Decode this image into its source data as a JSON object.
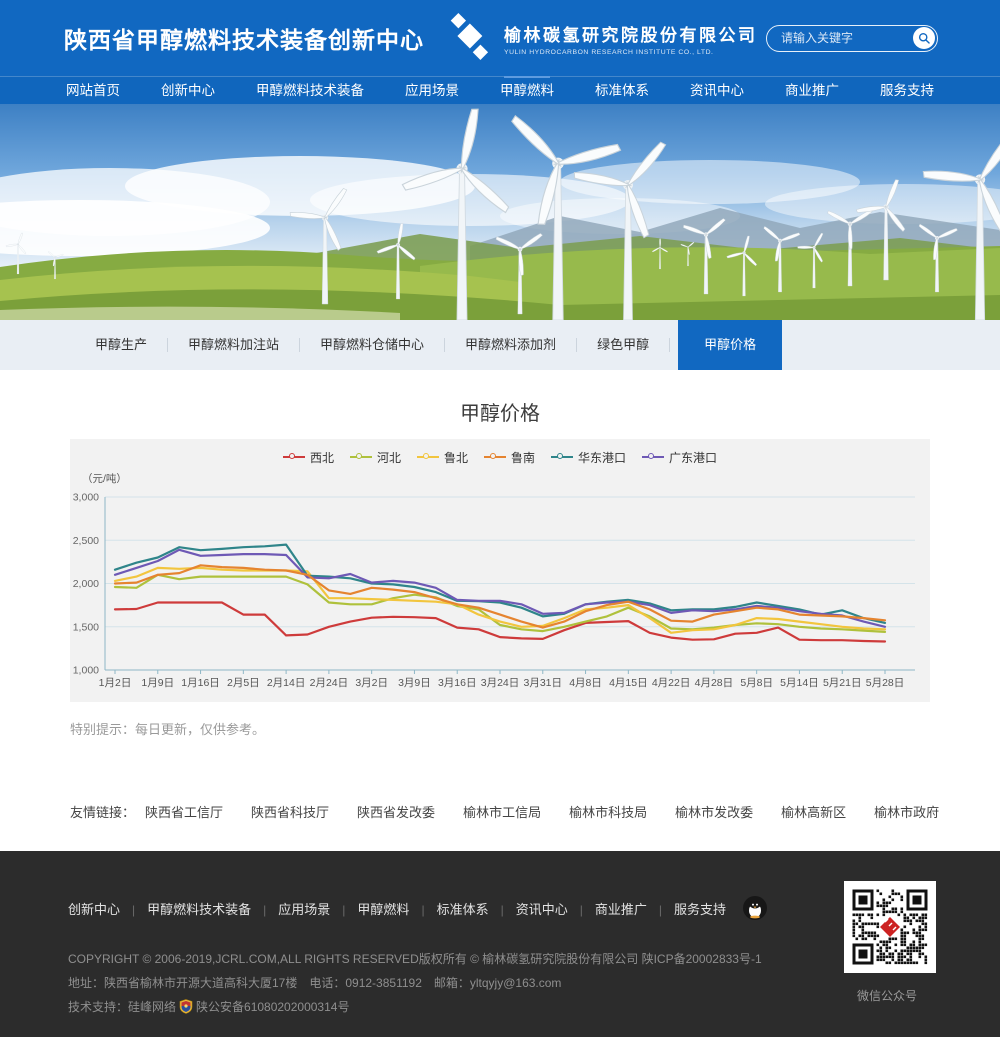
{
  "header": {
    "site_title": "陕西省甲醇燃料技术装备创新中心",
    "company_name": "榆林碳氢研究院股份有限公司",
    "company_name_en": "YULIN HYDROCARBON RESEARCH INSTITUTE CO., LTD.",
    "search_placeholder": "请输入关键字"
  },
  "nav": {
    "items": [
      "网站首页",
      "创新中心",
      "甲醇燃料技术装备",
      "应用场景",
      "甲醇燃料",
      "标准体系",
      "资讯中心",
      "商业推广",
      "服务支持"
    ],
    "active": "甲醇燃料"
  },
  "subnav": {
    "items": [
      "甲醇生产",
      "甲醇燃料加注站",
      "甲醇燃料仓储中心",
      "甲醇燃料添加剂",
      "绿色甲醇",
      "甲醇价格"
    ],
    "active": "甲醇价格"
  },
  "page": {
    "title": "甲醇价格",
    "tip": "特别提示：每日更新，仅供参考。"
  },
  "chart_data": {
    "type": "line",
    "title": "甲醇价格",
    "unit_label": "（元/吨）",
    "ylim": [
      1000,
      3000
    ],
    "ytick_values": [
      3000,
      2500,
      2000,
      1500,
      1000
    ],
    "yticks": [
      "3,000",
      "2,500",
      "2,000",
      "1,500",
      "1,000"
    ],
    "grid": true,
    "legend_position": "top",
    "x_labels": [
      "1月2日",
      "1月9日",
      "1月16日",
      "2月5日",
      "2月14日",
      "2月24日",
      "3月2日",
      "3月9日",
      "3月16日",
      "3月24日",
      "3月31日",
      "4月8日",
      "4月15日",
      "4月22日",
      "4月28日",
      "5月8日",
      "5月14日",
      "5月21日",
      "5月28日"
    ],
    "series": [
      {
        "name": "西北",
        "color": "#ce3b3b",
        "values": [
          1700,
          1705,
          1780,
          1780,
          1780,
          1780,
          1640,
          1640,
          1400,
          1410,
          1500,
          1560,
          1605,
          1615,
          1610,
          1600,
          1490,
          1470,
          1380,
          1365,
          1360,
          1460,
          1545,
          1555,
          1565,
          1430,
          1375,
          1350,
          1355,
          1420,
          1430,
          1490,
          1350,
          1345,
          1345,
          1335,
          1330
        ]
      },
      {
        "name": "河北",
        "color": "#afc13c",
        "values": [
          1960,
          1950,
          2100,
          2050,
          2080,
          2080,
          2080,
          2080,
          2080,
          1990,
          1780,
          1760,
          1760,
          1830,
          1870,
          1840,
          1740,
          1700,
          1520,
          1470,
          1450,
          1500,
          1560,
          1620,
          1720,
          1620,
          1480,
          1470,
          1490,
          1520,
          1540,
          1530,
          1500,
          1480,
          1470,
          1455,
          1440
        ]
      },
      {
        "name": "鲁北",
        "color": "#f2c53e",
        "values": [
          2030,
          2080,
          2180,
          2170,
          2180,
          2160,
          2150,
          2150,
          2150,
          2140,
          1830,
          1830,
          1820,
          1810,
          1800,
          1790,
          1760,
          1640,
          1560,
          1500,
          1510,
          1600,
          1700,
          1720,
          1750,
          1600,
          1430,
          1460,
          1470,
          1520,
          1600,
          1590,
          1560,
          1530,
          1500,
          1480,
          1470
        ]
      },
      {
        "name": "鲁南",
        "color": "#e58430",
        "values": [
          2000,
          2010,
          2100,
          2120,
          2210,
          2190,
          2180,
          2160,
          2150,
          2100,
          1920,
          1880,
          1950,
          1930,
          1900,
          1830,
          1760,
          1720,
          1640,
          1560,
          1490,
          1560,
          1680,
          1750,
          1790,
          1700,
          1570,
          1560,
          1640,
          1680,
          1720,
          1700,
          1640,
          1630,
          1620,
          1600,
          1575
        ]
      },
      {
        "name": "华东港口",
        "color": "#2f858a",
        "values": [
          2160,
          2240,
          2300,
          2420,
          2385,
          2400,
          2420,
          2430,
          2450,
          2090,
          2080,
          2060,
          2000,
          1990,
          1960,
          1900,
          1800,
          1795,
          1780,
          1720,
          1620,
          1650,
          1760,
          1790,
          1810,
          1770,
          1690,
          1700,
          1700,
          1730,
          1780,
          1740,
          1700,
          1640,
          1690,
          1600,
          1545
        ]
      },
      {
        "name": "广东港口",
        "color": "#6e59b5",
        "values": [
          2100,
          2180,
          2260,
          2390,
          2320,
          2330,
          2340,
          2340,
          2330,
          2070,
          2060,
          2110,
          2010,
          2030,
          2010,
          1950,
          1810,
          1800,
          1800,
          1760,
          1650,
          1660,
          1760,
          1780,
          1790,
          1750,
          1660,
          1690,
          1680,
          1700,
          1740,
          1720,
          1680,
          1650,
          1630,
          1560,
          1500
        ]
      }
    ]
  },
  "friend_links": {
    "label": "友情链接：",
    "links": [
      "陕西省工信厅",
      "陕西省科技厅",
      "陕西省发改委",
      "榆林市工信局",
      "榆林市科技局",
      "榆林市发改委",
      "榆林高新区",
      "榆林市政府"
    ]
  },
  "footer": {
    "nav": [
      "创新中心",
      "甲醇燃料技术装备",
      "应用场景",
      "甲醇燃料",
      "标准体系",
      "资讯中心",
      "商业推广",
      "服务支持"
    ],
    "copyright": "COPYRIGHT © 2006-2019,JCRL.COM,ALL RIGHTS RESERVED版权所有 © 榆林碳氢研究院股份有限公司 陕ICP备20002833号-1",
    "address_line": "地址：陕西省榆林市开源大道高科大厦17楼　电话：0912-3851192　邮箱：yltqyjy@163.com",
    "support_prefix": "技术支持：硅峰网络",
    "police_number": "陕公安备61080202000314号",
    "wechat_label": "微信公众号"
  }
}
